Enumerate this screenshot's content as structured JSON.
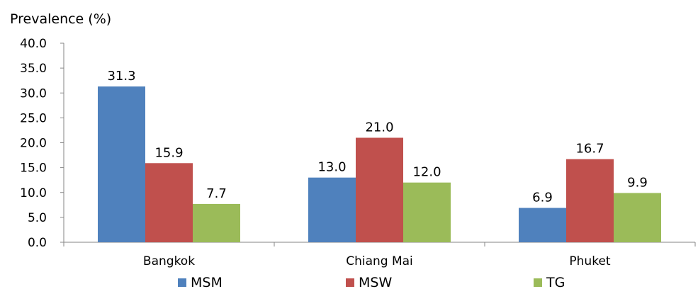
{
  "chart_data": {
    "type": "bar",
    "ylabel": "Prevalence (%)",
    "xlabel": "",
    "ylim": [
      0,
      40
    ],
    "yticks": [
      "0.0",
      "5.0",
      "10.0",
      "15.0",
      "20.0",
      "25.0",
      "30.0",
      "35.0",
      "40.0"
    ],
    "grid": false,
    "legend_position": "bottom",
    "categories": [
      "Bangkok",
      "Chiang Mai",
      "Phuket"
    ],
    "series": [
      {
        "name": "MSM",
        "color": "#4F81BD",
        "values": [
          31.3,
          13.0,
          6.9
        ],
        "labels": [
          "31.3",
          "13.0",
          "6.9"
        ]
      },
      {
        "name": "MSW",
        "color": "#C0504D",
        "values": [
          15.9,
          21.0,
          16.7
        ],
        "labels": [
          "15.9",
          "21.0",
          "16.7"
        ]
      },
      {
        "name": "TG",
        "color": "#9BBB59",
        "values": [
          7.7,
          12.0,
          9.9
        ],
        "labels": [
          "7.7",
          "12.0",
          "9.9"
        ]
      }
    ]
  }
}
